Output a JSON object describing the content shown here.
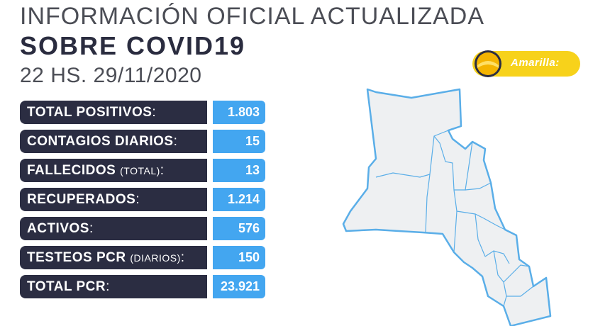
{
  "header": {
    "line1": "INFORMACIÓN OFICIAL ACTUALIZADA",
    "line2": "SOBRE COVID19",
    "line3": "22 HS. 29/11/2020"
  },
  "stats": [
    {
      "label": "TOTAL POSITIVOS",
      "note": "",
      "value": "1.803"
    },
    {
      "label": "CONTAGIOS DIARIOS",
      "note": "",
      "value": "15"
    },
    {
      "label": "FALLECIDOS",
      "note": "(TOTAL)",
      "value": "13"
    },
    {
      "label": "RECUPERADOS",
      "note": "",
      "value": "1.214"
    },
    {
      "label": "ACTIVOS",
      "note": "",
      "value": "576"
    },
    {
      "label": "TESTEOS PCR",
      "note": "(DIARIOS)",
      "value": "150"
    },
    {
      "label": "TOTAL PCR",
      "note": "",
      "value": "23.921"
    }
  ],
  "colon": ":",
  "legend": {
    "label": "Amarilla:",
    "color": "#f7d21b"
  },
  "colors": {
    "label_bg": "#2b2d42",
    "value_bg": "#43a6f0",
    "map_fill": "#eef0f2",
    "map_border": "#5aaee8"
  },
  "icons": {
    "legend": "yellow-status-circle-icon",
    "map": "province-map"
  }
}
